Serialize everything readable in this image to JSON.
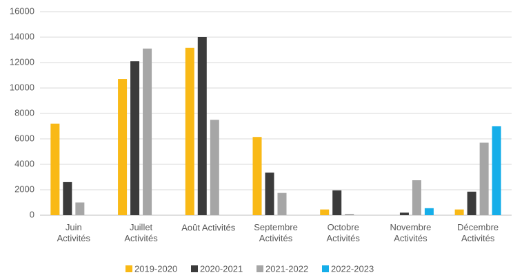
{
  "chart_data": {
    "type": "bar",
    "categories": [
      "Juin\nActivités",
      "Juillet\nActivités",
      "Août Activités",
      "Septembre\nActivités",
      "Octobre\nActivités",
      "Novembre\nActivités",
      "Décembre\nActivités"
    ],
    "series": [
      {
        "name": "2019-2020",
        "color": "#f9b916",
        "values": [
          7200,
          10700,
          13150,
          6150,
          450,
          null,
          450
        ]
      },
      {
        "name": "2020-2021",
        "color": "#3b3b3b",
        "values": [
          2600,
          12100,
          14000,
          3350,
          1950,
          200,
          1850
        ]
      },
      {
        "name": "2021-2022",
        "color": "#a6a6a6",
        "values": [
          1000,
          13100,
          7500,
          1750,
          100,
          2750,
          5700
        ]
      },
      {
        "name": "2022-2023",
        "color": "#16aee9",
        "values": [
          null,
          null,
          null,
          null,
          null,
          550,
          7000
        ]
      }
    ],
    "ylim": [
      0,
      16000
    ],
    "yticks": [
      0,
      2000,
      4000,
      6000,
      8000,
      10000,
      12000,
      14000,
      16000
    ],
    "grid": true,
    "legend": "bottom"
  }
}
